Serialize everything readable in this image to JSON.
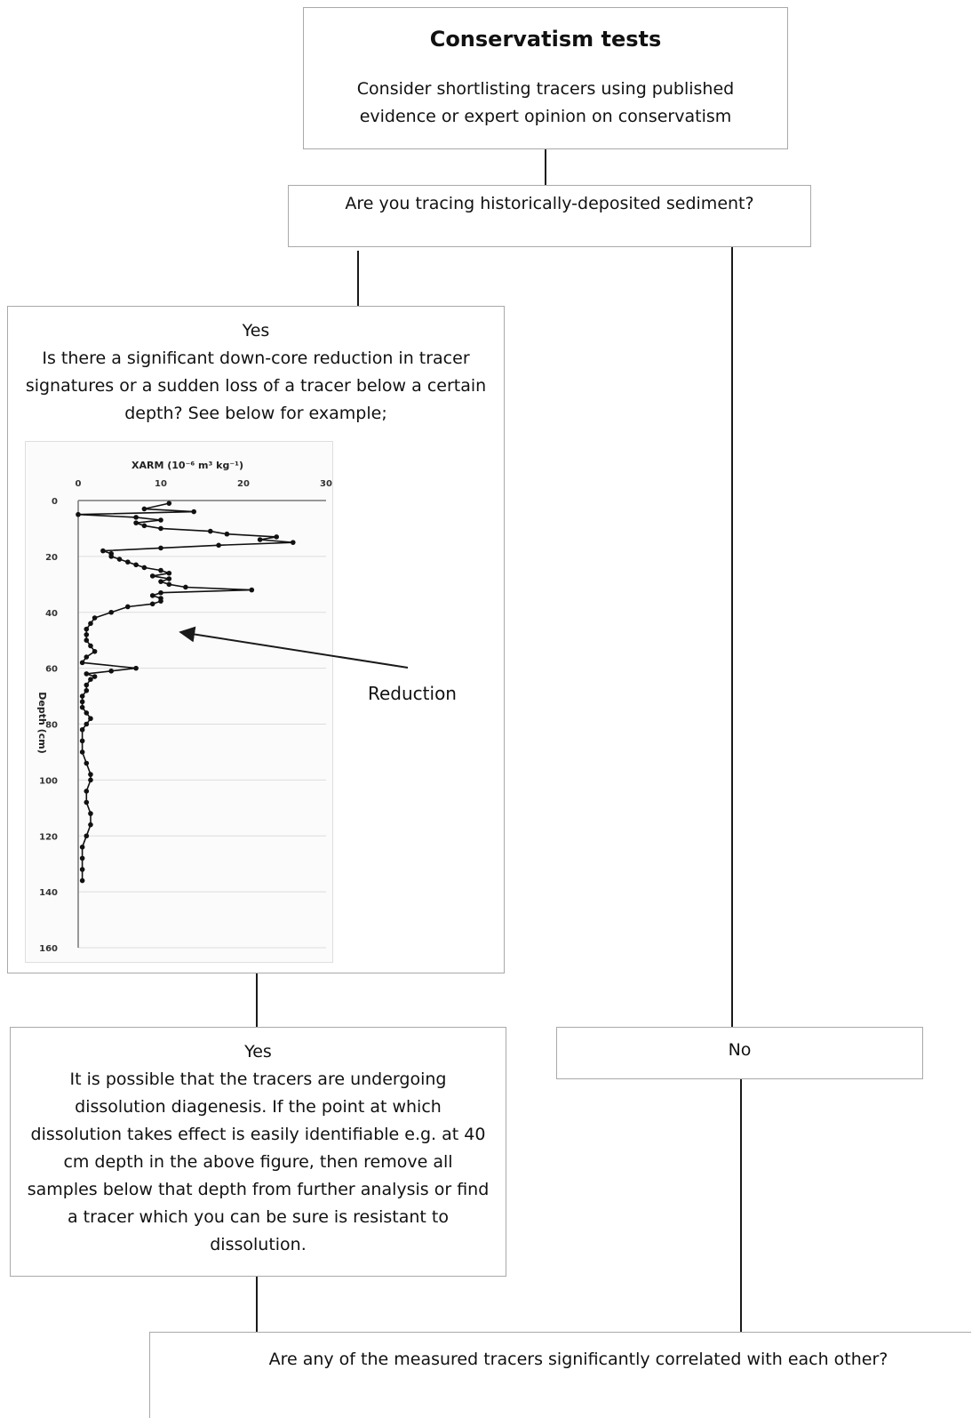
{
  "conservatism": {
    "title": "Conservatism tests",
    "intro": "Consider shortlisting tracers using published evidence or expert opinion on conservatism"
  },
  "history_question": "Are you tracing historically-deposited sediment?",
  "yes_branch_1": {
    "label": "Yes",
    "question": "Is there a significant down-core reduction in tracer signatures or a sudden loss of a tracer below a certain depth? See below for example;"
  },
  "annotation": {
    "reduction_label": "Reduction"
  },
  "yes_branch_2": {
    "label": "Yes",
    "text": "It is possible that the tracers are undergoing dissolution diagenesis. If the point at which dissolution takes effect is easily identifiable e.g. at 40 cm depth in the above figure, then remove all samples below that depth from further analysis or find a tracer which you can be sure is resistant to dissolution."
  },
  "no_branch": {
    "label": "No"
  },
  "correlation_question": "Are any of the measured tracers significantly correlated with each other?",
  "colors": {
    "line": "#1a1a1a",
    "box_border": "#a9a9a9",
    "grid": "#dcdcdc"
  },
  "chart_data": {
    "type": "line",
    "xlabel": "XARM (10⁻⁶ m³ kg⁻¹)",
    "ylabel": "Depth (cm)",
    "xlim": [
      0,
      30
    ],
    "ylim": [
      0,
      160
    ],
    "y_inverted": true,
    "x_axis_position": "top",
    "x_ticks": [
      "0",
      "10",
      "20",
      "30"
    ],
    "y_ticks": [
      "0",
      "20",
      "40",
      "60",
      "80",
      "100",
      "120",
      "140",
      "160"
    ],
    "grid": "horizontal",
    "series": [
      {
        "x": [
          11,
          8,
          14,
          0,
          7,
          10,
          7,
          8,
          10,
          16,
          18,
          24,
          22,
          26,
          17,
          10,
          3,
          4,
          4,
          5,
          6,
          7,
          8,
          10,
          11,
          9,
          11,
          10,
          11,
          13,
          21,
          10,
          9,
          10,
          10,
          9,
          6,
          4,
          2,
          1.5,
          1,
          1,
          1,
          1.5,
          2,
          1,
          0.5,
          7,
          4,
          1,
          2,
          1.5,
          1,
          1,
          0.5,
          0.5,
          0.5,
          1,
          1.5,
          1,
          0.5,
          0.5,
          0.5,
          1,
          1.5,
          1.5,
          1,
          1,
          1.5,
          1.5,
          1,
          0.5,
          0.5,
          0.5,
          0.5
        ],
        "y": [
          1,
          3,
          4,
          5,
          6,
          7,
          8,
          9,
          10,
          11,
          12,
          13,
          14,
          15,
          16,
          17,
          18,
          19,
          20,
          21,
          22,
          23,
          24,
          25,
          26,
          27,
          28,
          29,
          30,
          31,
          32,
          33,
          34,
          35,
          36,
          37,
          38,
          40,
          42,
          44,
          46,
          48,
          50,
          52,
          54,
          56,
          58,
          60,
          61,
          62,
          63,
          64,
          66,
          68,
          70,
          72,
          74,
          76,
          78,
          80,
          82,
          86,
          90,
          94,
          98,
          100,
          104,
          108,
          112,
          116,
          120,
          124,
          128,
          132,
          136
        ]
      }
    ]
  }
}
